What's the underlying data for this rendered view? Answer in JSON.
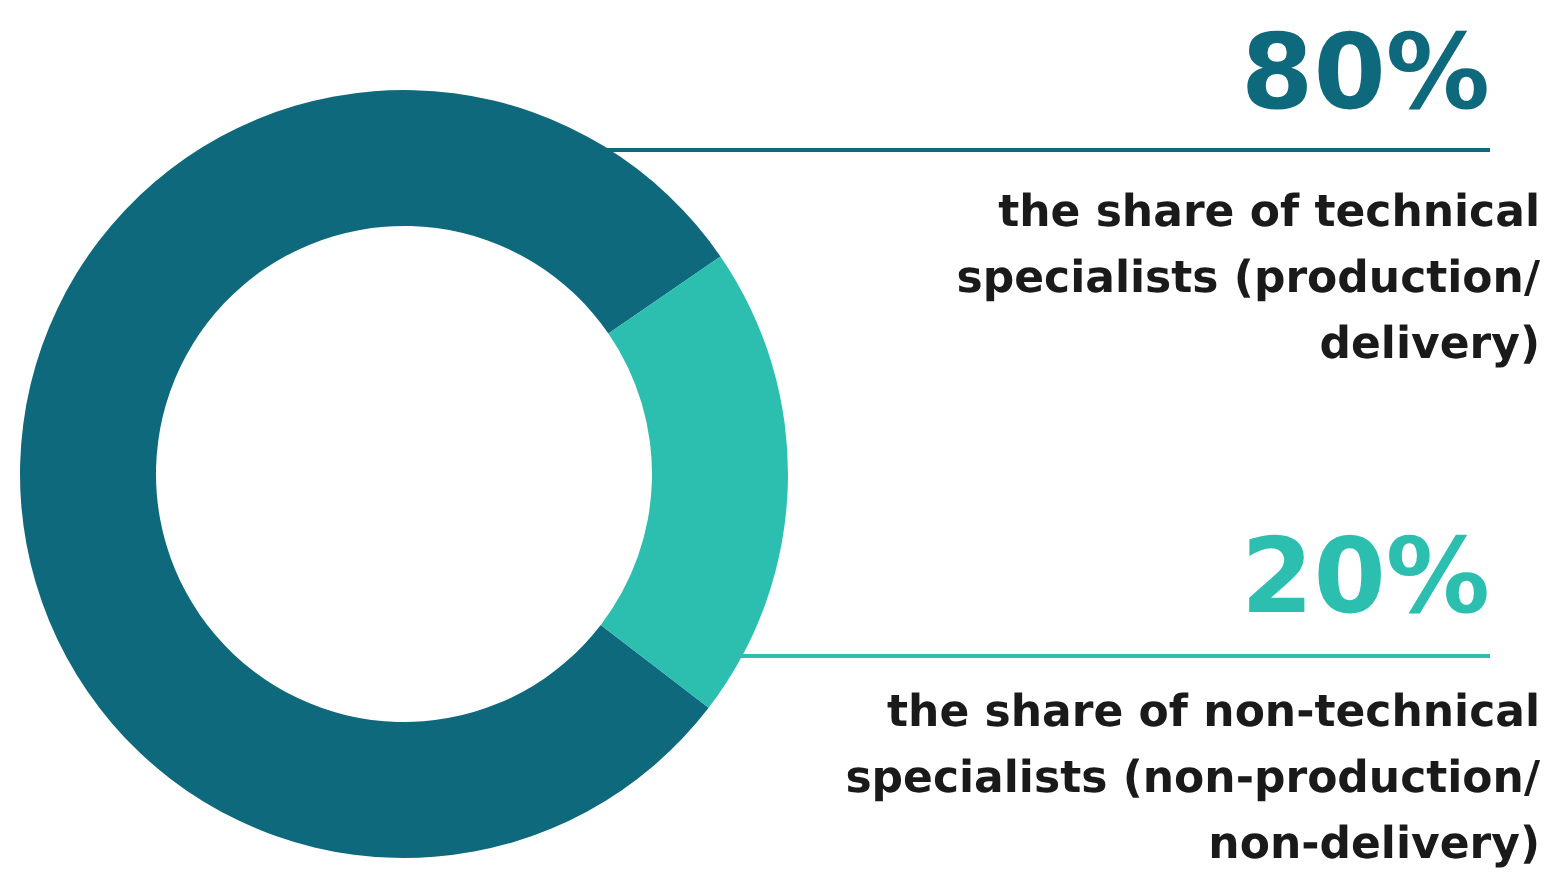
{
  "chart_data": {
    "type": "donut",
    "categories": [
      "the share of technical specialists (production/ delivery)",
      "the share of non-technical specialists (non-production/ non-delivery)"
    ],
    "values": [
      80,
      20
    ],
    "colors": [
      "#0e697c",
      "#2cbfb0"
    ],
    "value_labels": [
      "80%",
      "20%"
    ]
  }
}
